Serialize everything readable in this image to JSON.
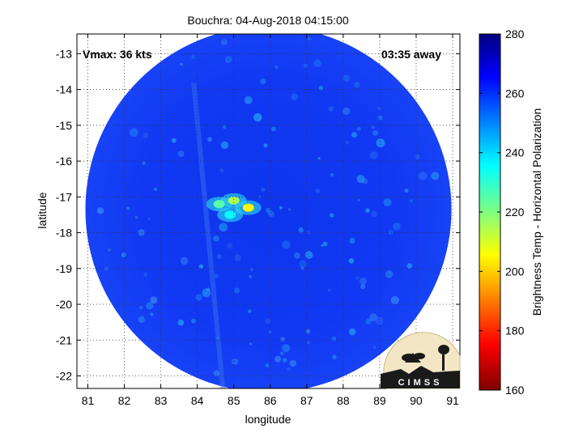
{
  "chart_data": {
    "type": "heatmap",
    "title": "Bouchra: 04-Aug-2018 04:15:00",
    "xlabel": "longitude",
    "ylabel": "latitude",
    "x_ticks": [
      81,
      82,
      83,
      84,
      85,
      86,
      87,
      88,
      89,
      90,
      91
    ],
    "y_ticks": [
      -13,
      -14,
      -15,
      -16,
      -17,
      -18,
      -19,
      -20,
      -21,
      -22
    ],
    "xlim": [
      80.7,
      91.2
    ],
    "ylim": [
      -22.35,
      -12.45
    ],
    "grid": true,
    "annotations": {
      "vmax": "Vmax: 36 kts",
      "time_away": "03:35 away"
    },
    "colorbar": {
      "label": "Brightness Temp - Horizontal Polarization",
      "ticks": [
        280,
        260,
        240,
        220,
        200,
        180,
        160
      ],
      "range": [
        160,
        280
      ],
      "colormap": "jet"
    },
    "swath": {
      "center_lon": 85.95,
      "center_lat": -17.35,
      "background_temp": 263
    },
    "warm_features": [
      {
        "lon": 84.6,
        "lat": -17.2,
        "temp": 225
      },
      {
        "lon": 85.0,
        "lat": -17.1,
        "temp": 215
      },
      {
        "lon": 85.4,
        "lat": -17.3,
        "temp": 205
      },
      {
        "lon": 84.9,
        "lat": -17.5,
        "temp": 235
      }
    ],
    "logo_text": "CIMSS"
  }
}
